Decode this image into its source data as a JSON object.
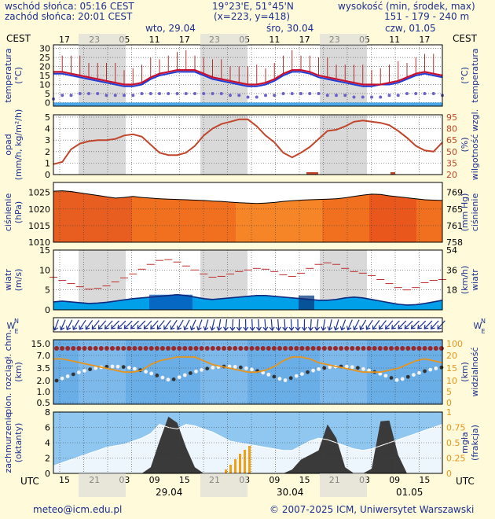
{
  "header": {
    "sunrise": "wschód słońca: 05:16 CEST",
    "sunset": "zachód słońca: 20:01 CEST",
    "coords": "19°23'E, 51°45'N",
    "grid": "(x=223,  y=418)",
    "height_label": "wysokość (min, środek, max)",
    "height_value": "151 - 179 - 240 m"
  },
  "tz_top": "CEST",
  "tz_bottom": "UTC",
  "day_labels_top": [
    "wto, 29.04",
    "śro, 30.04",
    "czw, 01.05"
  ],
  "day_labels_bottom": [
    "29.04",
    "30.04",
    "01.05"
  ],
  "cest_ticks": [
    "17",
    "23",
    "05",
    "11",
    "17",
    "23",
    "05",
    "11",
    "17",
    "23",
    "05",
    "11",
    "17"
  ],
  "utc_ticks": [
    "15",
    "21",
    "03",
    "09",
    "15",
    "21",
    "03",
    "09",
    "15",
    "21",
    "03",
    "09",
    "15"
  ],
  "footer": {
    "email": "meteo@icm.edu.pl",
    "copyright": "© 2007-2025 ICM, Uniwersytet Warszawski"
  },
  "colors": {
    "background": "#fffad9",
    "text": "#1a2f90",
    "night_band": "#d9d9d9",
    "temp_line": "#c8102e",
    "dew_line": "#1f3bd6",
    "humidity_line": "#c0452a",
    "wind_fill": "#00a0e8",
    "cloud_sky": "#8fc7f0",
    "visibility_line": "#e8941a"
  },
  "chart_data": [
    {
      "type": "line",
      "title": "temperatura",
      "ylabel": "temperatura (°C)",
      "ylim": [
        0,
        30
      ],
      "yticks": [
        0,
        5,
        10,
        15,
        20,
        25,
        30
      ],
      "series": [
        {
          "values": [
            17,
            17,
            16,
            15,
            14,
            13,
            12,
            11,
            10,
            10,
            11,
            14,
            16,
            17,
            18,
            18,
            18,
            16,
            14,
            13,
            12,
            11,
            10,
            10,
            11,
            13,
            16,
            18,
            18,
            17,
            15,
            14,
            13,
            12,
            11,
            10,
            10,
            10,
            11,
            12,
            14,
            16,
            17,
            16,
            15
          ]
        },
        {
          "values": [
            16,
            16,
            15,
            14,
            13,
            12,
            11,
            10,
            9,
            9,
            10,
            13,
            15,
            16,
            17,
            17,
            17,
            15,
            13,
            12,
            11,
            10,
            9,
            9,
            10,
            12,
            15,
            17,
            17,
            16,
            14,
            13,
            12,
            11,
            10,
            9,
            9,
            10,
            10,
            11,
            13,
            15,
            16,
            15,
            14
          ]
        },
        {
          "values": [
            2,
            4,
            4,
            5,
            5,
            5,
            4,
            4,
            4,
            4,
            5,
            5,
            5,
            5,
            5,
            5,
            5,
            5,
            5,
            5,
            4,
            4,
            3,
            3,
            4,
            4,
            5,
            5,
            5,
            5,
            5,
            4,
            4,
            4,
            3,
            3,
            3,
            3,
            4,
            4,
            5,
            5,
            5,
            5,
            4
          ]
        }
      ]
    },
    {
      "type": "line",
      "title": "opad / wilgotność",
      "ylabel": "opad (mm/h, kg/m²/h)",
      "ylim": [
        0,
        5
      ],
      "yticks": [
        0,
        1,
        2,
        3,
        4,
        5
      ],
      "y2label": "wilgotność wzgl. (%)",
      "y2ticks": [
        20,
        35,
        50,
        65,
        80,
        95
      ],
      "series": [
        {
          "values": [
            0.9,
            1.1,
            2.2,
            2.7,
            2.9,
            3.0,
            3.0,
            3.1,
            3.4,
            3.5,
            3.3,
            2.6,
            1.9,
            1.7,
            1.7,
            1.9,
            2.5,
            3.4,
            4.0,
            4.4,
            4.6,
            4.8,
            4.8,
            4.2,
            3.4,
            2.8,
            1.9,
            1.5,
            1.9,
            2.4,
            3.1,
            3.8,
            3.9,
            4.2,
            4.6,
            4.7,
            4.6,
            4.5,
            4.3,
            3.8,
            3.2,
            2.5,
            2.1,
            2.0,
            2.8
          ]
        }
      ]
    },
    {
      "type": "area",
      "title": "ciśnienie",
      "ylabel": "ciśnienie (hPa)",
      "ylim": [
        1010,
        1028
      ],
      "yticks": [
        1010,
        1015,
        1020,
        1025
      ],
      "y2label": "(mm Hg) ciśnienie",
      "y2ticks": [
        758,
        761,
        765,
        769
      ],
      "series": [
        {
          "values": [
            1025.5,
            1025.6,
            1025.4,
            1025.0,
            1024.6,
            1024.2,
            1023.8,
            1023.4,
            1023.6,
            1023.9,
            1023.6,
            1023.4,
            1023.2,
            1023.1,
            1023.0,
            1022.9,
            1022.8,
            1022.7,
            1022.5,
            1022.4,
            1022.2,
            1022.0,
            1021.9,
            1021.8,
            1021.9,
            1022.1,
            1022.4,
            1022.6,
            1022.8,
            1022.9,
            1023.0,
            1023.1,
            1023.2,
            1023.5,
            1023.9,
            1024.3,
            1024.6,
            1024.5,
            1024.1,
            1023.8,
            1023.5,
            1023.2,
            1022.9,
            1022.8,
            1022.7
          ]
        }
      ]
    },
    {
      "type": "area",
      "title": "wiatr",
      "ylabel": "wiatr (m/s)",
      "ylim": [
        0,
        15
      ],
      "yticks": [
        0,
        5,
        10,
        15
      ],
      "y2label": "(km/h) wiatr",
      "y2ticks": [
        18,
        36,
        54
      ],
      "series": [
        {
          "values": [
            2.0,
            2.2,
            2.0,
            1.8,
            1.6,
            1.7,
            1.9,
            2.2,
            2.5,
            2.8,
            3.0,
            3.2,
            3.4,
            3.6,
            3.8,
            3.6,
            3.2,
            2.8,
            2.6,
            2.8,
            3.0,
            3.2,
            3.4,
            3.6,
            3.6,
            3.4,
            3.2,
            3.0,
            2.8,
            2.6,
            2.4,
            2.4,
            2.6,
            3.0,
            3.2,
            3.0,
            2.6,
            2.2,
            1.8,
            1.4,
            1.2,
            1.3,
            1.6,
            2.0,
            2.4
          ]
        },
        {
          "values": [
            8.2,
            7.4,
            6.6,
            5.8,
            5.2,
            5.4,
            6.0,
            7.0,
            8.0,
            9.0,
            10.2,
            11.4,
            12.4,
            12.6,
            12.0,
            11.0,
            10.0,
            9.0,
            8.2,
            8.4,
            9.0,
            9.6,
            10.0,
            10.4,
            10.2,
            9.6,
            8.8,
            8.4,
            9.2,
            10.4,
            11.4,
            11.8,
            11.4,
            10.4,
            9.6,
            9.2,
            8.6,
            7.6,
            6.6,
            5.6,
            5.0,
            5.6,
            6.8,
            7.4,
            7.6
          ]
        }
      ]
    },
    {
      "type": "line",
      "title": "widzialność",
      "ylabel": "pion. rozciągł. chm. (km)",
      "yticks": [
        0.5,
        1.0,
        2.0,
        3.5,
        7.0,
        15.0
      ],
      "y2label": "widzialność (km)",
      "y2ticks": [
        0,
        5,
        10,
        15,
        20,
        100
      ],
      "series": [
        {
          "values": [
            17,
            17,
            16,
            15,
            14,
            13,
            12,
            11,
            10,
            10,
            11,
            14,
            16,
            17,
            18,
            18,
            18,
            16,
            14,
            13,
            12,
            11,
            10,
            10,
            11,
            13,
            16,
            18,
            18,
            17,
            15,
            14,
            13,
            12,
            11,
            10,
            10,
            10,
            11,
            12,
            14,
            16,
            17,
            16,
            15
          ]
        }
      ]
    },
    {
      "type": "area",
      "title": "zachmurzenie",
      "ylabel": "zachmurzenie (oktanty)",
      "ylim": [
        0,
        8
      ],
      "yticks": [
        0,
        2,
        4,
        6,
        8
      ],
      "y2label": "(frakcja) mgła",
      "y2ticks": [
        0,
        0.25,
        0.5,
        0.75,
        1
      ],
      "series": [
        {
          "values": [
            1,
            1.4,
            1.8,
            2.2,
            2.6,
            3.0,
            3.4,
            3.6,
            3.8,
            4.2,
            4.6,
            5.2,
            6.4,
            6.0,
            5.8,
            6.4,
            6.2,
            5.8,
            5.4,
            4.8,
            4.2,
            4.0,
            3.8,
            3.6,
            3.4,
            3.2,
            3.0,
            3.0,
            3.6,
            4.2,
            4.6,
            4.4,
            4.0,
            3.6,
            3.2,
            3.0,
            3.2,
            3.6,
            4.0,
            4.4,
            4.8,
            5.2,
            5.6,
            6.0,
            6.4
          ]
        },
        {
          "values": [
            0,
            0,
            0,
            0,
            0,
            0,
            0,
            0,
            0,
            0,
            0,
            0.8,
            4.2,
            7.4,
            6.6,
            3.4,
            0.8,
            0,
            0,
            0,
            0,
            0,
            0,
            0,
            0,
            0,
            0,
            0.5,
            1.8,
            2.4,
            3.0,
            6.4,
            4.6,
            0.8,
            0,
            0,
            0.6,
            6.8,
            6.9,
            2.4,
            0,
            0,
            0,
            0,
            0
          ]
        }
      ]
    }
  ]
}
